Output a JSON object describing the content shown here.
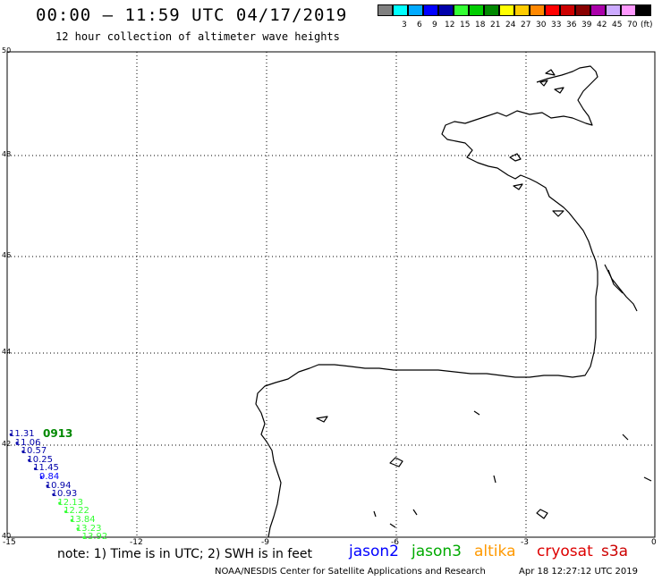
{
  "header": {
    "title": "00:00 – 11:59 UTC 04/17/2019",
    "subtitle": "12 hour collection of altimeter wave heights"
  },
  "legend": {
    "unit": "(ft)",
    "bins": [
      {
        "label": "",
        "color": "#808080"
      },
      {
        "label": "3",
        "color": "#00ffff"
      },
      {
        "label": "6",
        "color": "#00aaff"
      },
      {
        "label": "9",
        "color": "#0000ff"
      },
      {
        "label": "12",
        "color": "#0000aa"
      },
      {
        "label": "15",
        "color": "#33ff33"
      },
      {
        "label": "18",
        "color": "#00cc00"
      },
      {
        "label": "21",
        "color": "#008800"
      },
      {
        "label": "24",
        "color": "#ffff00"
      },
      {
        "label": "27",
        "color": "#ffcc00"
      },
      {
        "label": "30",
        "color": "#ff8800"
      },
      {
        "label": "33",
        "color": "#ff0000"
      },
      {
        "label": "36",
        "color": "#cc0000"
      },
      {
        "label": "39",
        "color": "#880000"
      },
      {
        "label": "42",
        "color": "#aa00aa"
      },
      {
        "label": "45",
        "color": "#ccaaff"
      },
      {
        "label": "70",
        "color": "#ff99ff"
      },
      {
        "label": "",
        "color": "#000000"
      }
    ]
  },
  "axes": {
    "longitude_ticks": [
      "-15",
      "-12",
      "-9",
      "-6",
      "-3",
      "0"
    ],
    "latitude_ticks": [
      "40",
      "42",
      "44",
      "46",
      "48",
      "50"
    ]
  },
  "track": {
    "time_label": "0913",
    "time_label_color": "#008800",
    "readings": [
      {
        "value": "11.31",
        "color": "#0000aa"
      },
      {
        "value": "11.06",
        "color": "#0000aa"
      },
      {
        "value": "10.57",
        "color": "#0000aa"
      },
      {
        "value": "10.25",
        "color": "#0000aa"
      },
      {
        "value": "11.45",
        "color": "#0000aa"
      },
      {
        "value": "9.84",
        "color": "#0000ff"
      },
      {
        "value": "10.94",
        "color": "#0000aa"
      },
      {
        "value": "10.93",
        "color": "#0000aa"
      },
      {
        "value": "12.13",
        "color": "#33ff33"
      },
      {
        "value": "12.22",
        "color": "#33ff33"
      },
      {
        "value": "13.84",
        "color": "#33ff33"
      },
      {
        "value": "13.23",
        "color": "#33ff33"
      },
      {
        "value": "13.92",
        "color": "#33ff33"
      }
    ]
  },
  "footer": {
    "note": "note: 1) Time is in UTC; 2) SWH is in feet",
    "satellites": [
      {
        "name": "jason2",
        "color": "#0000ff"
      },
      {
        "name": "jason3",
        "color": "#00aa00"
      },
      {
        "name": "altika",
        "color": "#ff9900"
      },
      {
        "name": "cryosat",
        "color": "#dd0000"
      },
      {
        "name": "s3a",
        "color": "#cc0000"
      }
    ],
    "credit": "NOAA/NESDIS Center for Satellite Applications and Research",
    "timestamp": "Apr 18 12:27:12 UTC 2019"
  }
}
